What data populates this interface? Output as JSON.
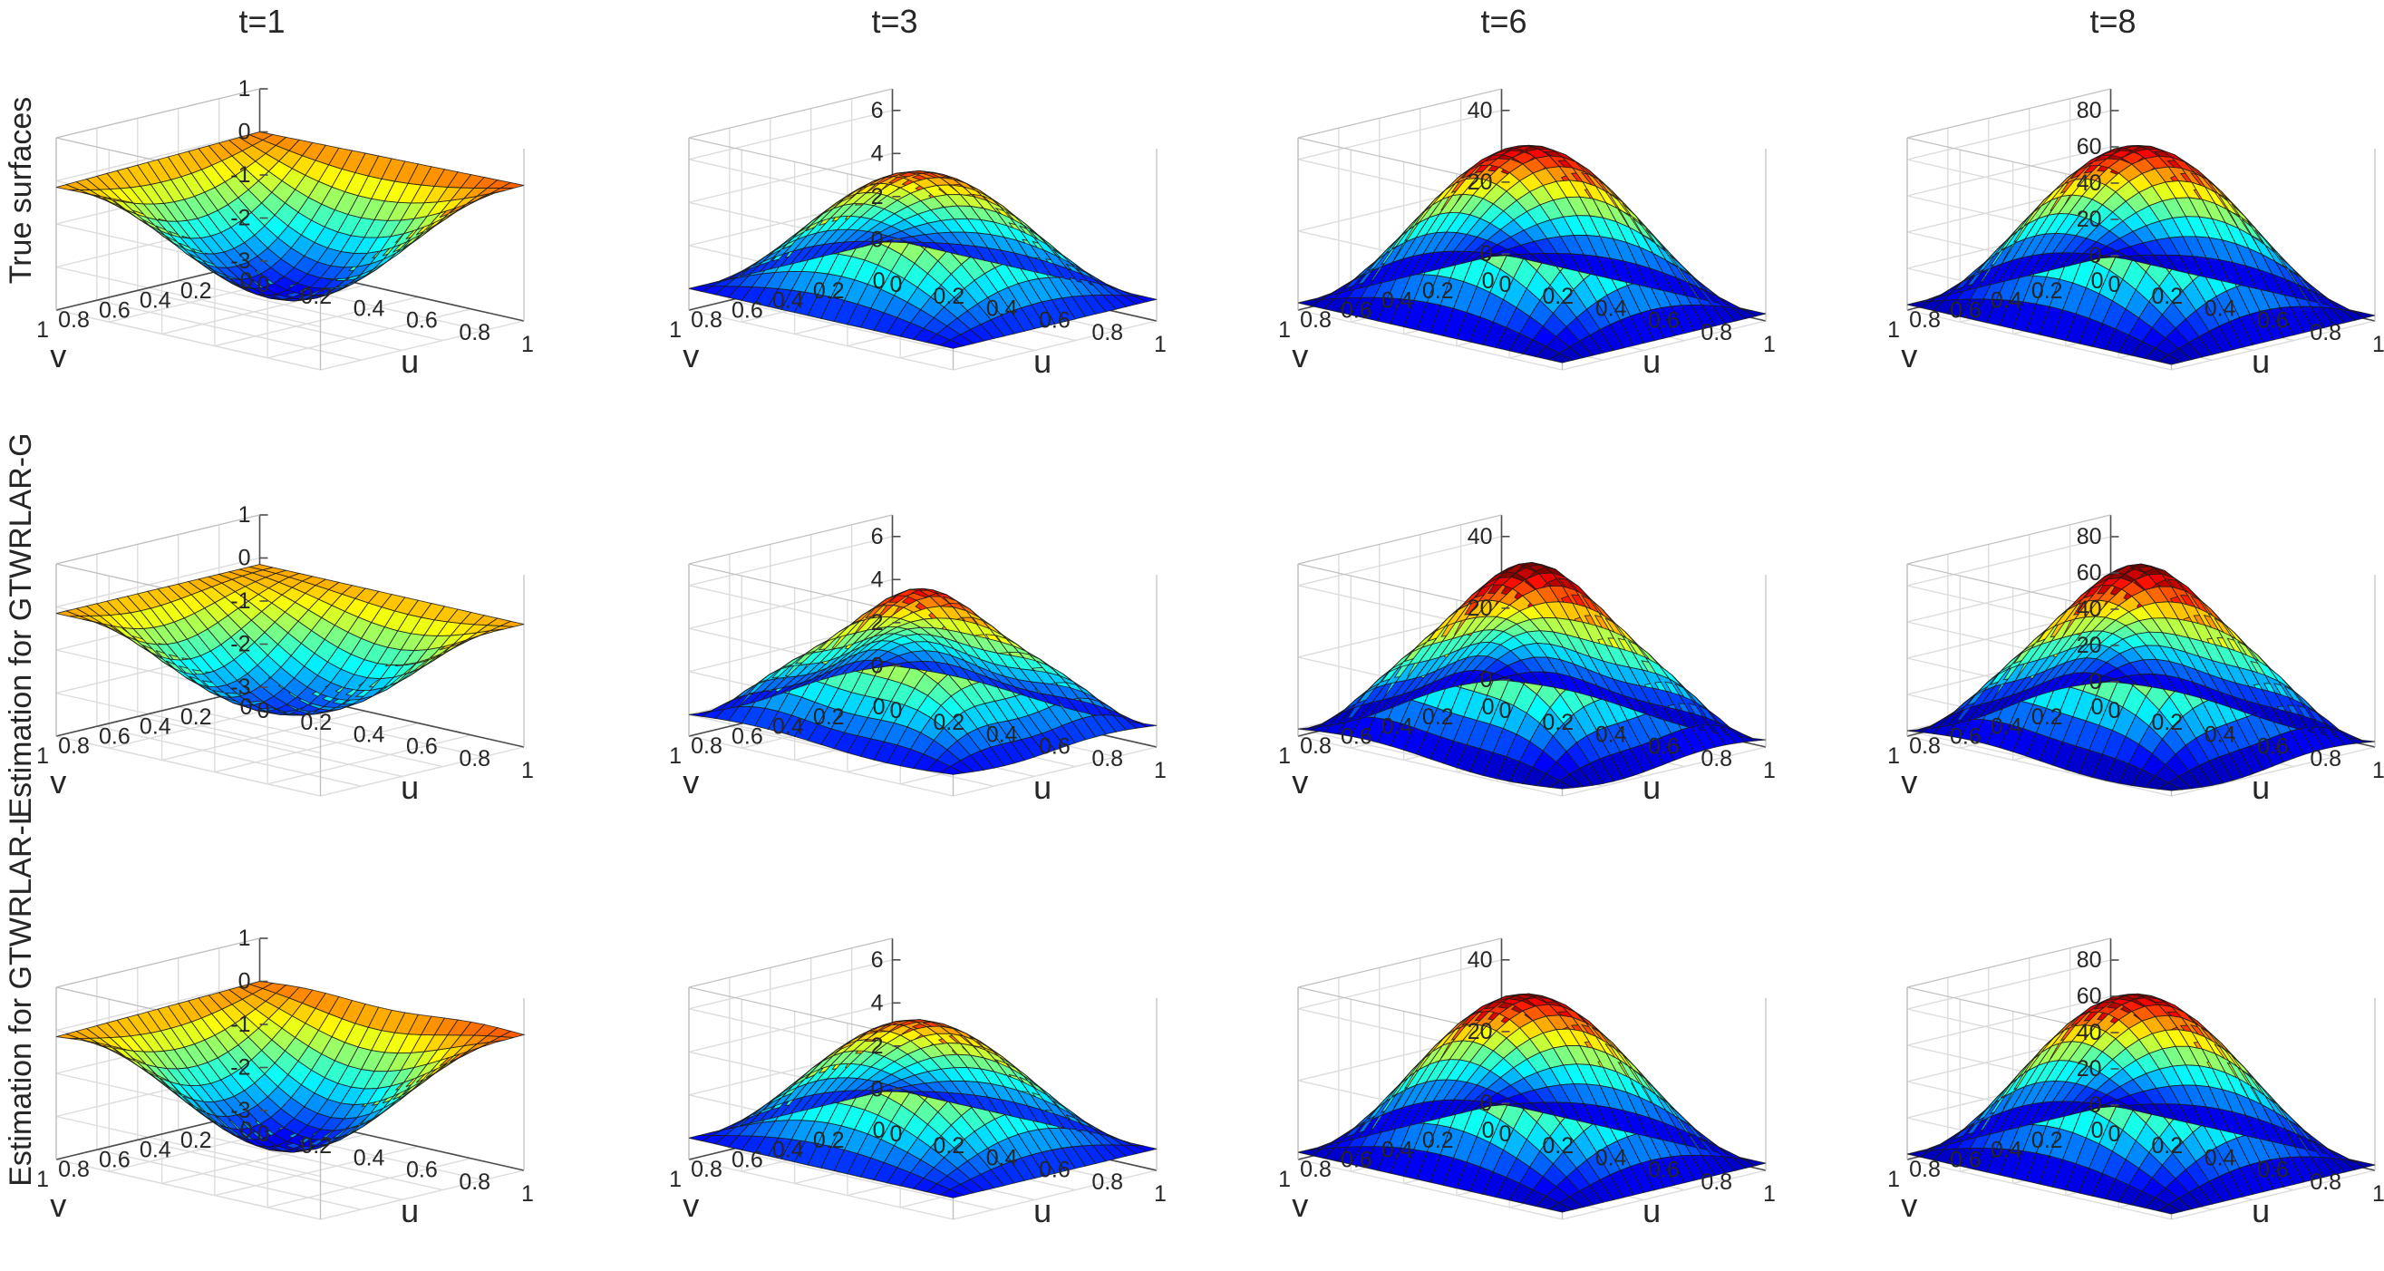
{
  "chart_data": {
    "type": "surface",
    "layout": "3 rows x 4 columns",
    "columns": [
      {
        "title": "t=1",
        "zticks": [
          "1",
          "0",
          "-1",
          "-2",
          "-3"
        ],
        "zlim": [
          -3,
          1
        ]
      },
      {
        "title": "t=3",
        "zticks": [
          "6",
          "4",
          "2",
          "0"
        ],
        "zlim": [
          -1,
          7
        ]
      },
      {
        "title": "t=6",
        "zticks": [
          "40",
          "20",
          "0"
        ],
        "zlim": [
          -2,
          46
        ]
      },
      {
        "title": "t=8",
        "zticks": [
          "80",
          "60",
          "40",
          "20",
          "0"
        ],
        "zlim": [
          -3,
          92
        ]
      }
    ],
    "rows": [
      {
        "label": "True surfaces"
      },
      {
        "label": "Estimation for GTWRLAR-G"
      },
      {
        "label": "Estimation for GTWRLAR-L"
      }
    ],
    "u_ticks": [
      "0",
      "0.2",
      "0.4",
      "0.6",
      "0.8",
      "1"
    ],
    "v_ticks": [
      "1",
      "0.8",
      "0.6",
      "0.4",
      "0.2",
      "0"
    ],
    "xlabel": "u",
    "ylabel": "v",
    "u_range": [
      0,
      1
    ],
    "v_range": [
      0,
      1
    ],
    "grid": true,
    "colormap": "jet",
    "colormap_stops": [
      "#00008f",
      "#0000ff",
      "#0080ff",
      "#00ffff",
      "#80ff80",
      "#ffff00",
      "#ff8000",
      "#ff0000",
      "#800000"
    ]
  }
}
